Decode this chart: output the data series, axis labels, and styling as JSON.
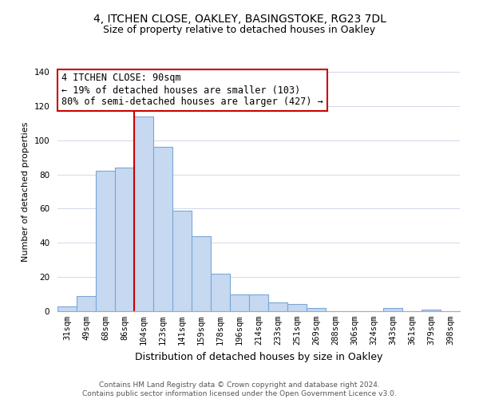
{
  "title1": "4, ITCHEN CLOSE, OAKLEY, BASINGSTOKE, RG23 7DL",
  "title2": "Size of property relative to detached houses in Oakley",
  "xlabel": "Distribution of detached houses by size in Oakley",
  "ylabel": "Number of detached properties",
  "bar_labels": [
    "31sqm",
    "49sqm",
    "68sqm",
    "86sqm",
    "104sqm",
    "123sqm",
    "141sqm",
    "159sqm",
    "178sqm",
    "196sqm",
    "214sqm",
    "233sqm",
    "251sqm",
    "269sqm",
    "288sqm",
    "306sqm",
    "324sqm",
    "343sqm",
    "361sqm",
    "379sqm",
    "398sqm"
  ],
  "bar_values": [
    3,
    9,
    82,
    84,
    114,
    96,
    59,
    44,
    22,
    10,
    10,
    5,
    4,
    2,
    0,
    0,
    0,
    2,
    0,
    1,
    0
  ],
  "bar_color": "#c6d9f1",
  "bar_edge_color": "#7aa6d6",
  "vline_x": 3.5,
  "annotation_title": "4 ITCHEN CLOSE: 90sqm",
  "annotation_line1": "← 19% of detached houses are smaller (103)",
  "annotation_line2": "80% of semi-detached houses are larger (427) →",
  "annotation_box_color": "#ffffff",
  "annotation_box_edge": "#cc0000",
  "vline_color": "#cc0000",
  "footer1": "Contains HM Land Registry data © Crown copyright and database right 2024.",
  "footer2": "Contains public sector information licensed under the Open Government Licence v3.0.",
  "ylim": [
    0,
    140
  ],
  "yticks": [
    0,
    20,
    40,
    60,
    80,
    100,
    120,
    140
  ],
  "background_color": "#ffffff",
  "title1_fontsize": 10,
  "title2_fontsize": 9,
  "ylabel_fontsize": 8,
  "xlabel_fontsize": 9,
  "tick_fontsize": 7.5,
  "footer_fontsize": 6.5,
  "annotation_fontsize": 8.5
}
